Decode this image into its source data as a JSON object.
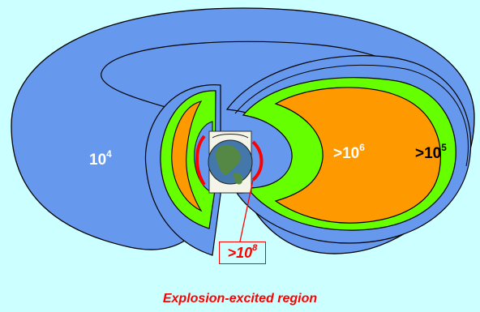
{
  "labels": {
    "outer_zone": {
      "base": "10",
      "exp": "4"
    },
    "outer_belt": {
      "prefix": ">",
      "base": "10",
      "exp": "6"
    },
    "belt_edge": {
      "prefix": ">",
      "base": "10",
      "exp": "5"
    },
    "inner_belt": {
      "prefix": ">",
      "base": "10",
      "exp": "8"
    }
  },
  "caption": "Explosion-excited region",
  "colors": {
    "background": "#ccffff",
    "outer_zone": "#6699ee",
    "green_zone": "#66ff00",
    "orange_zone": "#ff9900",
    "inner_belt": "#ff0000",
    "caption": "#ff0000"
  }
}
